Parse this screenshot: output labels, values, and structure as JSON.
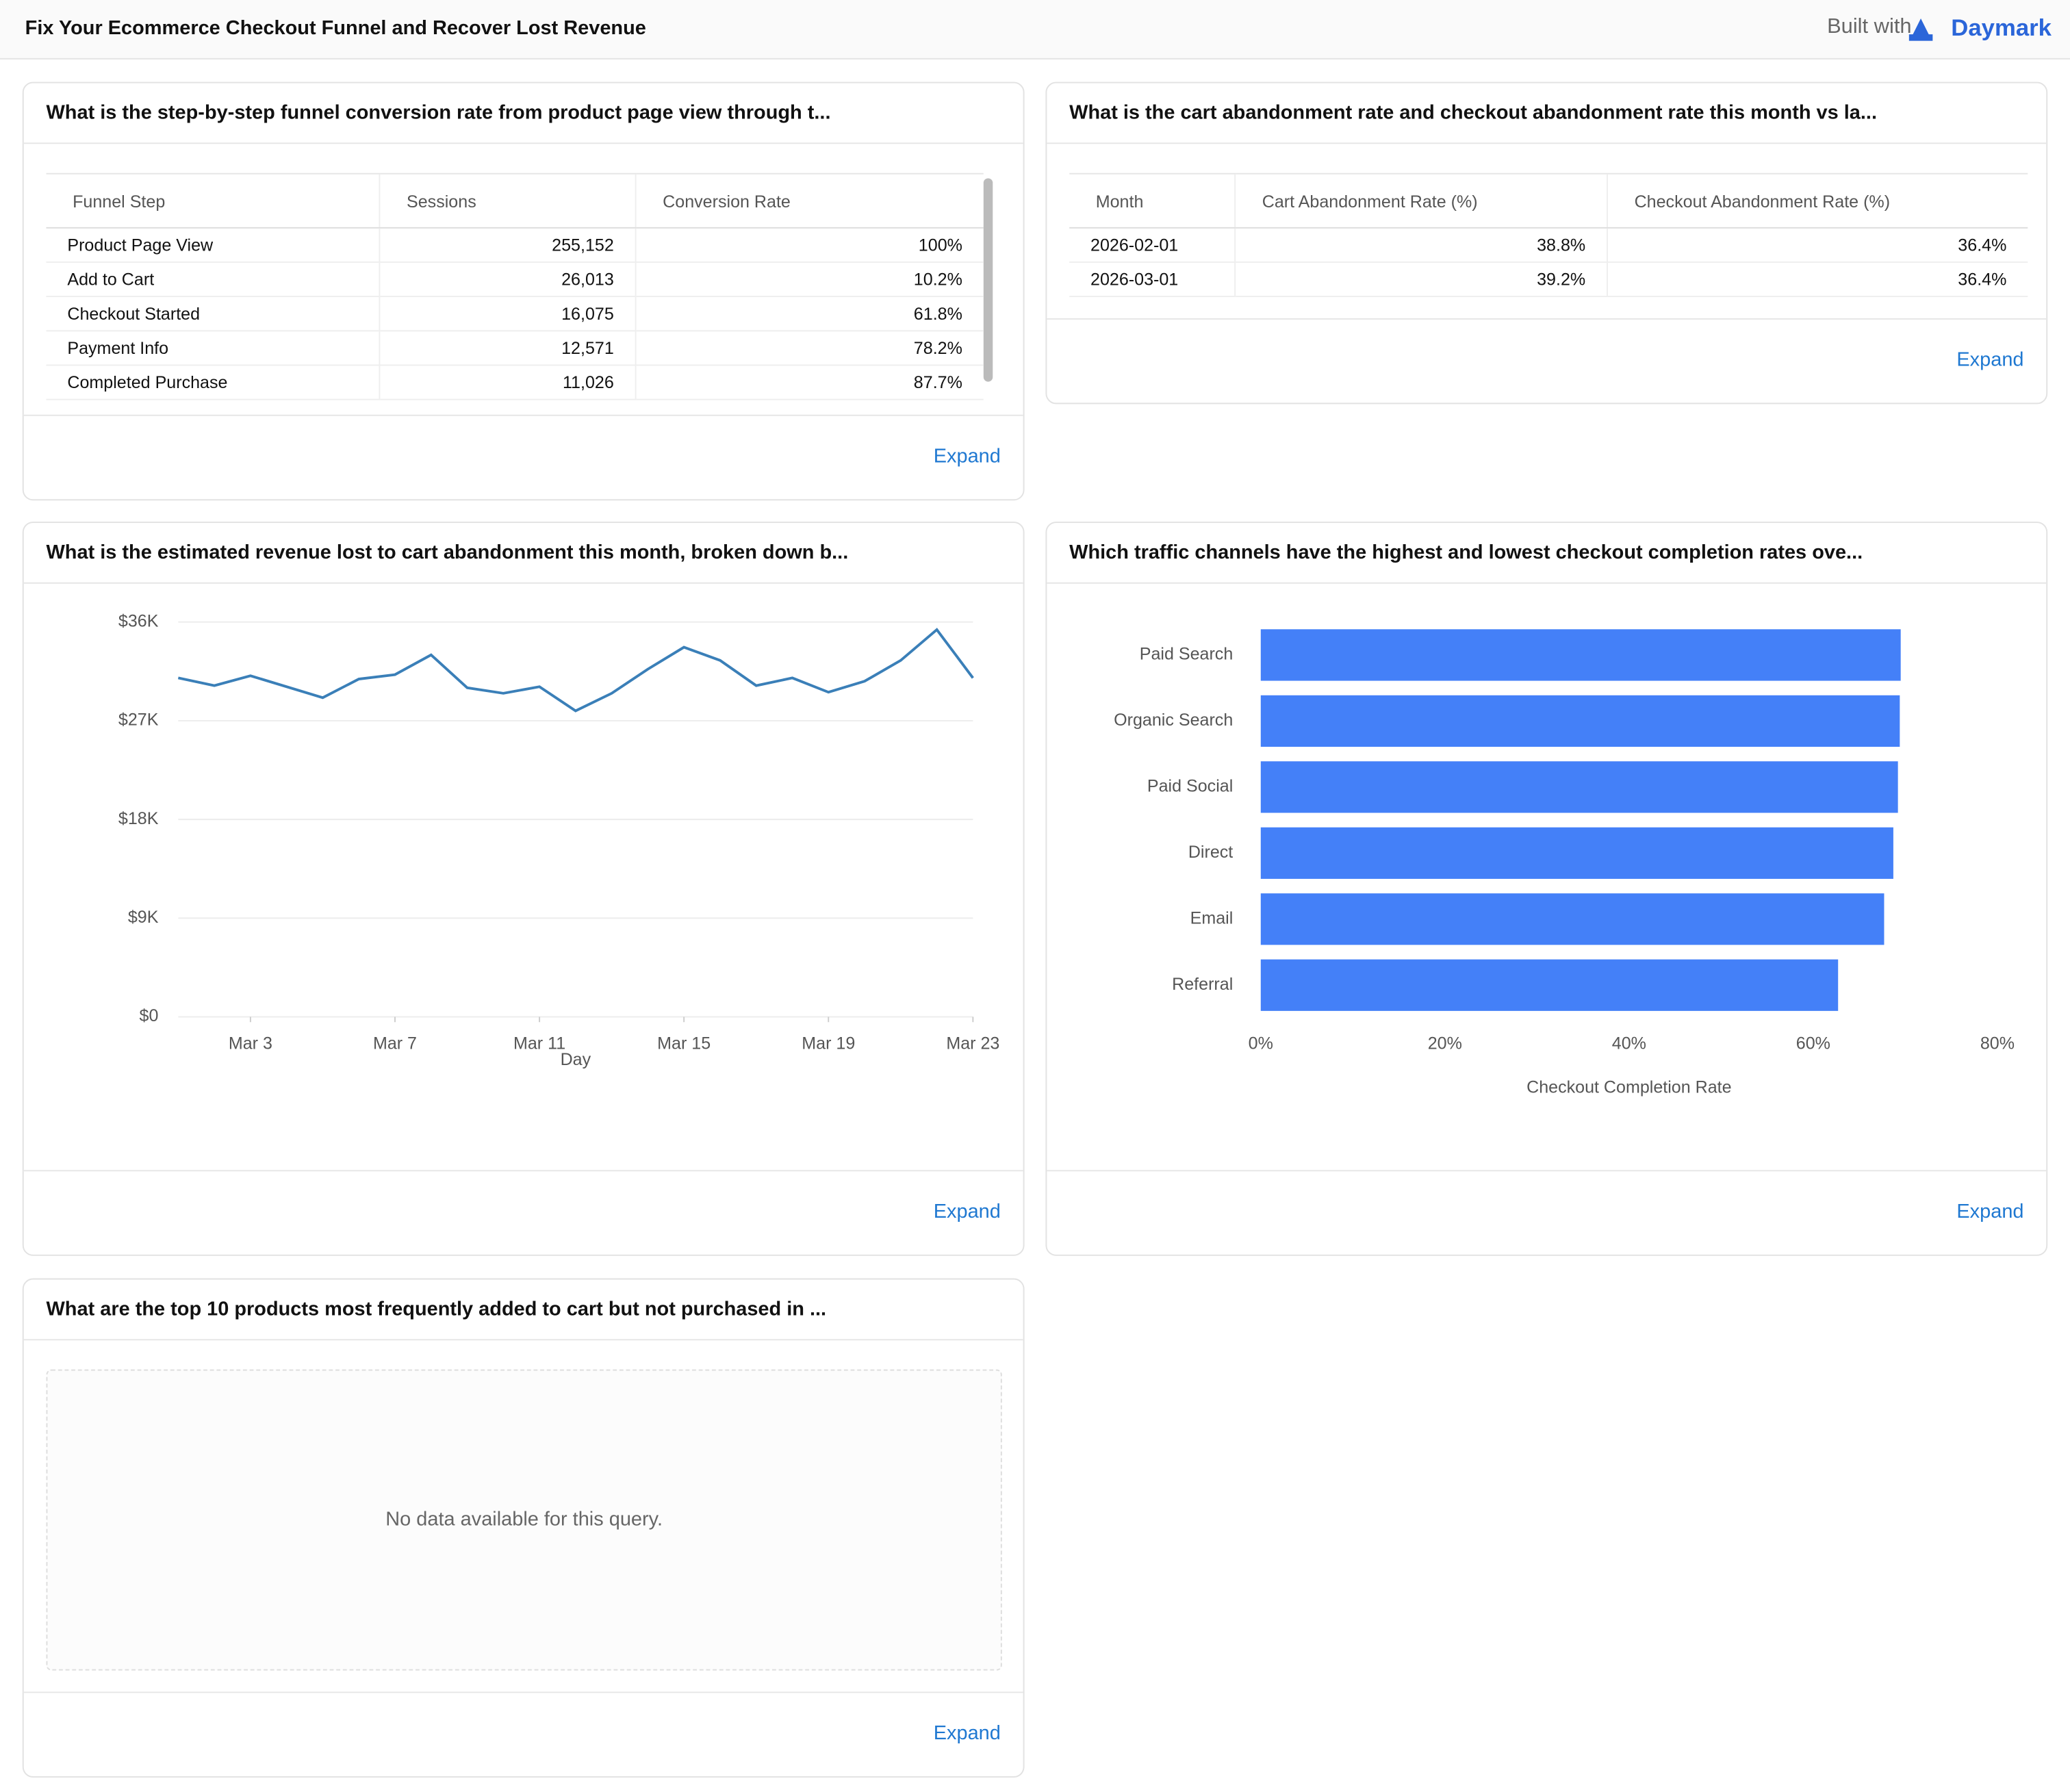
{
  "header": {
    "title": "Fix Your Ecommerce Checkout Funnel and Recover Lost Revenue",
    "built_with": "Built with",
    "brand": "Daymark"
  },
  "panels": [
    {
      "title": "What is the step-by-step funnel conversion rate from product page view through t...",
      "table": {
        "columns": [
          "Funnel Step",
          "Sessions",
          "Conversion Rate"
        ],
        "rows": [
          [
            "Product Page View",
            "255,152",
            "100%"
          ],
          [
            "Add to Cart",
            "26,013",
            "10.2%"
          ],
          [
            "Checkout Started",
            "16,075",
            "61.8%"
          ],
          [
            "Payment Info",
            "12,571",
            "78.2%"
          ],
          [
            "Completed Purchase",
            "11,026",
            "87.7%"
          ]
        ]
      },
      "action": "Expand"
    },
    {
      "title": "What is the cart abandonment rate and checkout abandonment rate this month vs la...",
      "table": {
        "columns": [
          "Month",
          "Cart Abandonment Rate (%)",
          "Checkout Abandonment Rate (%)"
        ],
        "rows": [
          [
            "2026-02-01",
            "38.8%",
            "36.4%"
          ],
          [
            "2026-03-01",
            "39.2%",
            "36.4%"
          ]
        ]
      },
      "action": "Expand"
    },
    {
      "title": "What is the estimated revenue lost to cart abandonment this month, broken down b...",
      "chart_data": {
        "type": "line",
        "x_label": "Day",
        "x": [
          1,
          2,
          3,
          4,
          5,
          6,
          7,
          8,
          9,
          10,
          11,
          12,
          13,
          14,
          15,
          16,
          17,
          18,
          19,
          20,
          21,
          22,
          23
        ],
        "values": [
          30900,
          30200,
          31100,
          30100,
          29100,
          30800,
          31200,
          33000,
          30000,
          29500,
          30100,
          27900,
          29500,
          31700,
          33700,
          32500,
          30200,
          30900,
          29600,
          30600,
          32500,
          35300,
          30900
        ],
        "color": "#3a7fb8",
        "xlim": [
          1,
          23
        ],
        "xticks": [
          {
            "value": 3,
            "label": "Mar 3"
          },
          {
            "value": 7,
            "label": "Mar 7"
          },
          {
            "value": 11,
            "label": "Mar 11"
          },
          {
            "value": 15,
            "label": "Mar 15"
          },
          {
            "value": 19,
            "label": "Mar 19"
          },
          {
            "value": 23,
            "label": "Mar 23"
          }
        ],
        "ylim": [
          0,
          36000
        ],
        "yticks": [
          {
            "value": 0,
            "label": "$0"
          },
          {
            "value": 9000,
            "label": "$9K"
          },
          {
            "value": 18000,
            "label": "$18K"
          },
          {
            "value": 27000,
            "label": "$27K"
          },
          {
            "value": 36000,
            "label": "$36K"
          }
        ],
        "grid": true
      },
      "action": "Expand"
    },
    {
      "title": "Which traffic channels have the highest and lowest checkout completion rates ove...",
      "chart_data": {
        "type": "hbar",
        "x_label": "Checkout Completion Rate",
        "categories": [
          "Paid Search",
          "Organic Search",
          "Paid Social",
          "Direct",
          "Email",
          "Referral"
        ],
        "values": [
          69.5,
          69.4,
          69.2,
          68.7,
          67.7,
          62.7
        ],
        "color": "#4480f8",
        "xlim": [
          0,
          80
        ],
        "xticks": [
          {
            "value": 0,
            "label": "0%"
          },
          {
            "value": 20,
            "label": "20%"
          },
          {
            "value": 40,
            "label": "40%"
          },
          {
            "value": 60,
            "label": "60%"
          },
          {
            "value": 80,
            "label": "80%"
          }
        ],
        "grid": false
      },
      "action": "Expand"
    },
    {
      "title": "What are the top 10 products most frequently added to cart but not purchased in ...",
      "message": "No data available for this query.",
      "action": "Expand"
    }
  ]
}
